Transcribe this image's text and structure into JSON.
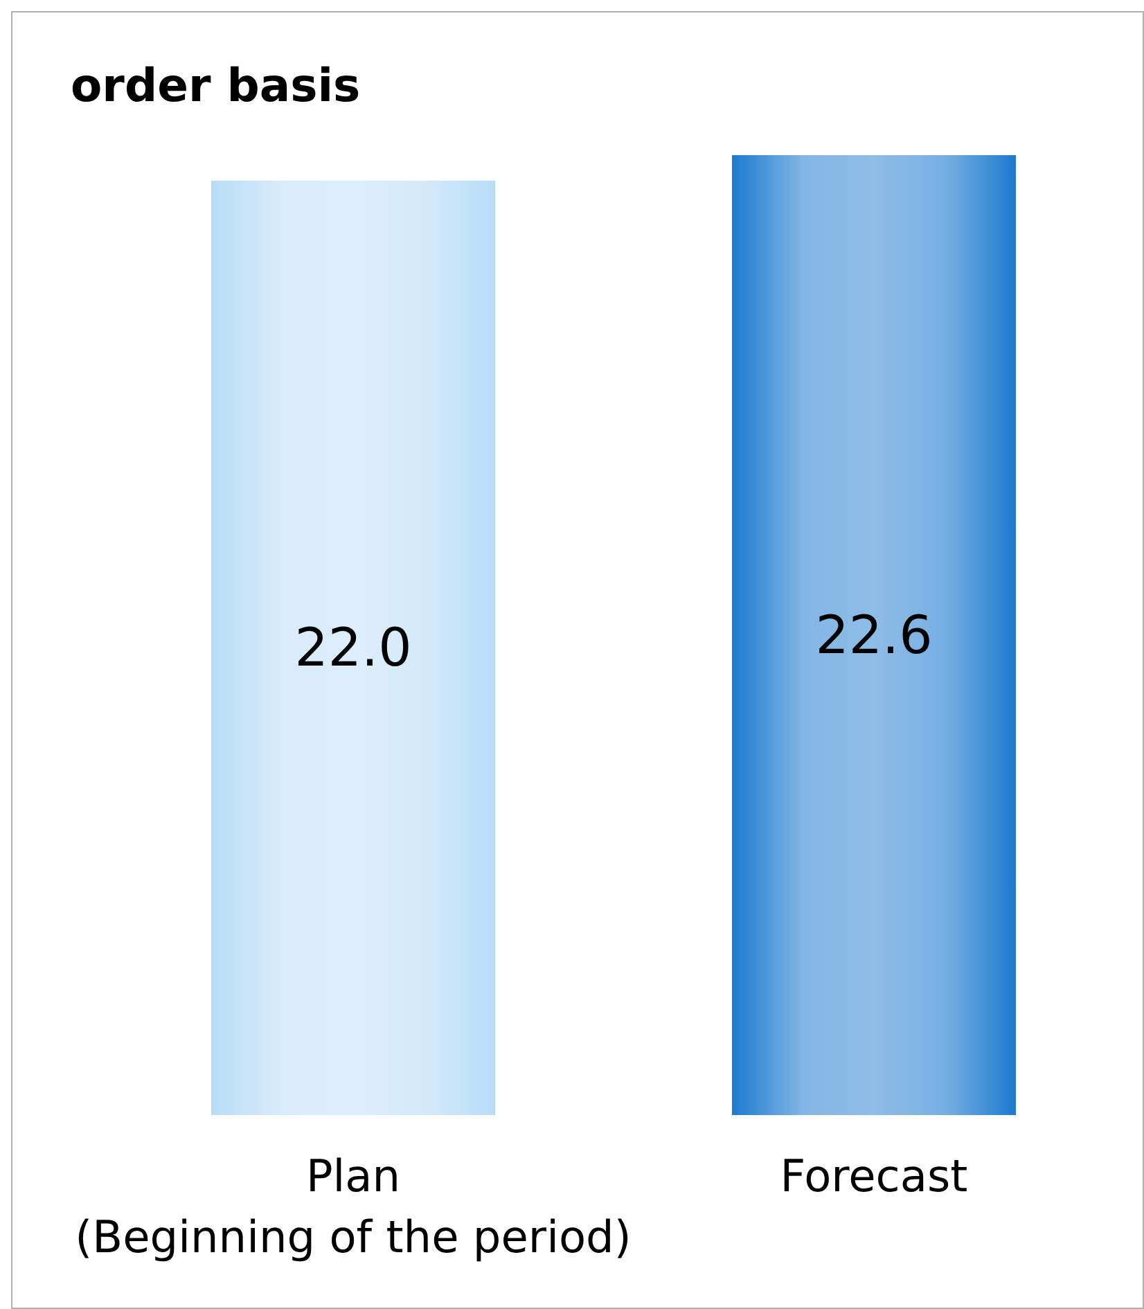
{
  "chart_data": {
    "type": "bar",
    "title": "order basis",
    "categories": [
      "Plan\n(Beginning of the period)",
      "Forecast"
    ],
    "values": [
      22.0,
      22.6
    ],
    "value_labels": [
      "22.0",
      "22.6"
    ],
    "colors": [
      "#b8dcf6",
      "#1c7acf"
    ]
  }
}
